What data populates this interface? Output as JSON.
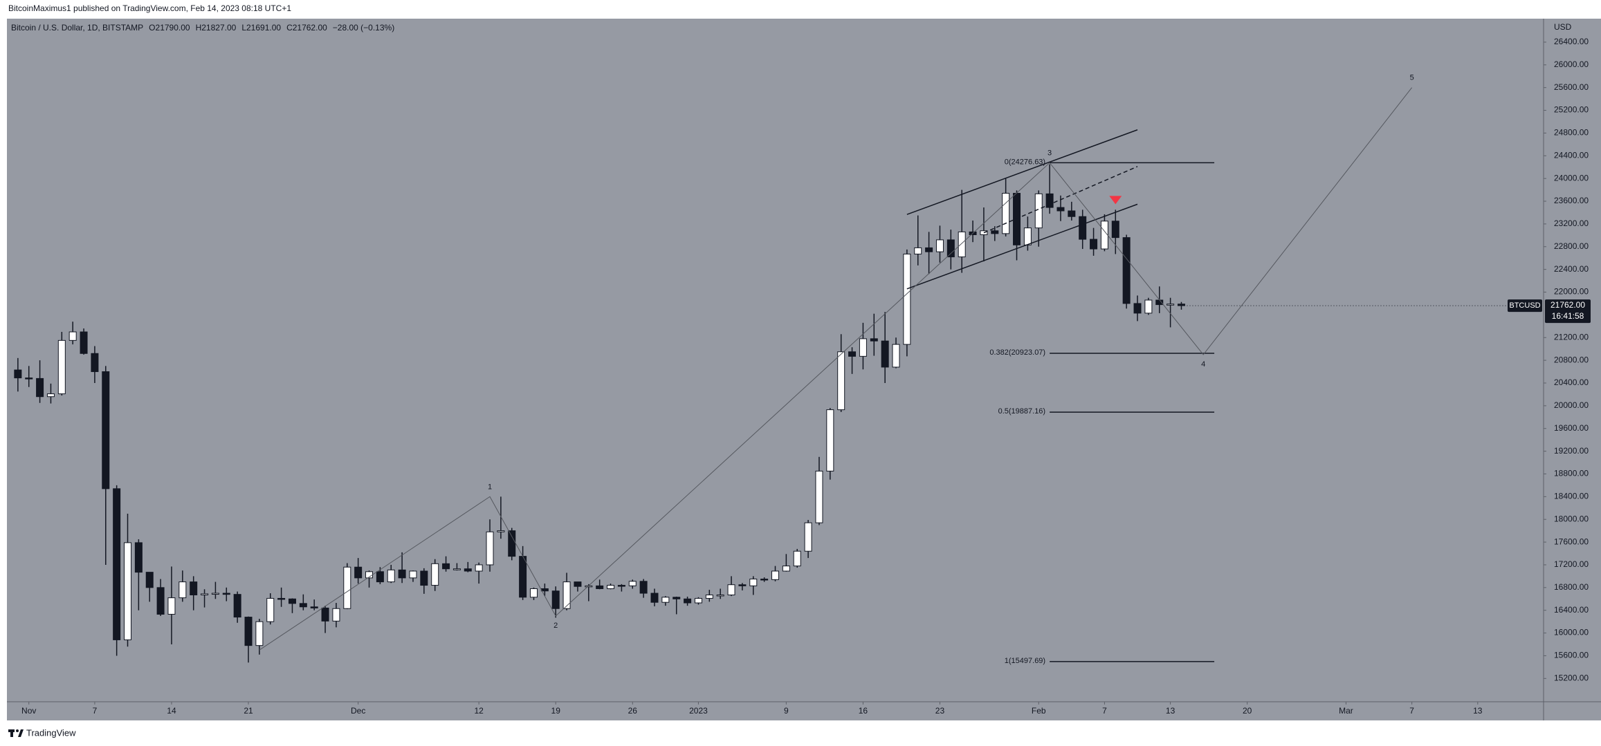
{
  "header": {
    "publisher": "BitcoinMaximus1 published on TradingView.com, Feb 14, 2023 08:18 UTC+1"
  },
  "legend": {
    "symbol": "Bitcoin / U.S. Dollar, 1D, BITSTAMP",
    "o": "O",
    "open": "21790.00",
    "h": "H",
    "high": "21827.00",
    "l": "L",
    "low": "21691.00",
    "c": "C",
    "close": "21762.00",
    "change": "−28.00 (−0.13%)"
  },
  "footer": {
    "brand": "TradingView"
  },
  "chart_data": {
    "type": "candlestick",
    "y_axis_label": "USD",
    "grid": false,
    "up_color": "#ffffff",
    "down_color": "#131722",
    "wick_color": "#131722",
    "background": "#969aa3",
    "x": [
      "2022-10-31",
      "2022-11-01",
      "2022-11-02",
      "2022-11-03",
      "2022-11-04",
      "2022-11-05",
      "2022-11-06",
      "2022-11-07",
      "2022-11-08",
      "2022-11-09",
      "2022-11-10",
      "2022-11-11",
      "2022-11-12",
      "2022-11-13",
      "2022-11-14",
      "2022-11-15",
      "2022-11-16",
      "2022-11-17",
      "2022-11-18",
      "2022-11-19",
      "2022-11-20",
      "2022-11-21",
      "2022-11-22",
      "2022-11-23",
      "2022-11-24",
      "2022-11-25",
      "2022-11-26",
      "2022-11-27",
      "2022-11-28",
      "2022-11-29",
      "2022-11-30",
      "2022-12-01",
      "2022-12-02",
      "2022-12-03",
      "2022-12-04",
      "2022-12-05",
      "2022-12-06",
      "2022-12-07",
      "2022-12-08",
      "2022-12-09",
      "2022-12-10",
      "2022-12-11",
      "2022-12-12",
      "2022-12-13",
      "2022-12-14",
      "2022-12-15",
      "2022-12-16",
      "2022-12-17",
      "2022-12-18",
      "2022-12-19",
      "2022-12-20",
      "2022-12-21",
      "2022-12-22",
      "2022-12-23",
      "2022-12-24",
      "2022-12-25",
      "2022-12-26",
      "2022-12-27",
      "2022-12-28",
      "2022-12-29",
      "2022-12-30",
      "2022-12-31",
      "2023-01-01",
      "2023-01-02",
      "2023-01-03",
      "2023-01-04",
      "2023-01-05",
      "2023-01-06",
      "2023-01-07",
      "2023-01-08",
      "2023-01-09",
      "2023-01-10",
      "2023-01-11",
      "2023-01-12",
      "2023-01-13",
      "2023-01-14",
      "2023-01-15",
      "2023-01-16",
      "2023-01-17",
      "2023-01-18",
      "2023-01-19",
      "2023-01-20",
      "2023-01-21",
      "2023-01-22",
      "2023-01-23",
      "2023-01-24",
      "2023-01-25",
      "2023-01-26",
      "2023-01-27",
      "2023-01-28",
      "2023-01-29",
      "2023-01-30",
      "2023-01-31",
      "2023-02-01",
      "2023-02-02",
      "2023-02-03",
      "2023-02-04",
      "2023-02-05",
      "2023-02-06",
      "2023-02-07",
      "2023-02-08",
      "2023-02-09",
      "2023-02-10",
      "2023-02-11",
      "2023-02-12",
      "2023-02-13",
      "2023-02-14"
    ],
    "open": [
      20630,
      20490,
      20480,
      20160,
      20210,
      21150,
      21300,
      20920,
      20600,
      18540,
      15880,
      17590,
      17070,
      16800,
      16330,
      16620,
      16900,
      16670,
      16690,
      16700,
      16680,
      16280,
      15780,
      16200,
      16610,
      16600,
      16520,
      16460,
      16440,
      16210,
      16430,
      17160,
      16970,
      17080,
      16900,
      17110,
      16970,
      17090,
      16840,
      17220,
      17130,
      17130,
      17090,
      17200,
      17780,
      17800,
      17350,
      16630,
      16780,
      16740,
      16430,
      16900,
      16820,
      16830,
      16780,
      16840,
      16830,
      16910,
      16700,
      16540,
      16630,
      16600,
      16530,
      16610,
      16670,
      16670,
      16850,
      16830,
      16950,
      16940,
      17090,
      17180,
      17440,
      17940,
      18850,
      19930,
      20950,
      20870,
      21180,
      21140,
      20680,
      21080,
      22670,
      22780,
      22710,
      22920,
      22620,
      23060,
      23010,
      23080,
      23030,
      23740,
      22830,
      23130,
      23730,
      23490,
      23430,
      23330,
      22930,
      22760,
      23250,
      22960,
      21800,
      21630,
      21860,
      21780,
      21790
    ],
    "high": [
      20840,
      20700,
      20800,
      20390,
      21300,
      21480,
      21360,
      21050,
      20700,
      18600,
      18100,
      17650,
      17070,
      16950,
      17170,
      17100,
      17000,
      16770,
      16900,
      16800,
      16730,
      16290,
      16250,
      16700,
      16800,
      16610,
      16680,
      16590,
      16480,
      16530,
      17230,
      17320,
      17100,
      17160,
      17200,
      17420,
      17100,
      17140,
      17300,
      17350,
      17230,
      17250,
      17240,
      18000,
      18400,
      17850,
      17530,
      16800,
      16870,
      16820,
      17060,
      16900,
      16860,
      16940,
      16870,
      16860,
      16940,
      16950,
      16780,
      16650,
      16640,
      16640,
      16630,
      16760,
      16780,
      17000,
      16880,
      17000,
      16980,
      17180,
      17390,
      17480,
      17990,
      19100,
      19960,
      21260,
      21030,
      21460,
      21620,
      21650,
      21200,
      22750,
      23350,
      23060,
      23170,
      23100,
      23800,
      23260,
      23490,
      23160,
      24000,
      23790,
      23330,
      23790,
      24250,
      23700,
      23590,
      23450,
      23130,
      23370,
      23450,
      23010,
      21940,
      21900,
      22100,
      21900,
      21827
    ],
    "low": [
      20250,
      20330,
      20050,
      20040,
      20180,
      21080,
      20900,
      20400,
      17200,
      15600,
      15760,
      16400,
      16550,
      16300,
      15800,
      16550,
      16400,
      16450,
      16600,
      16560,
      16180,
      15480,
      15620,
      16150,
      16460,
      16350,
      16400,
      16400,
      16000,
      16100,
      16420,
      16870,
      16800,
      16860,
      16880,
      16880,
      16900,
      16690,
      16740,
      17080,
      17100,
      17070,
      16870,
      17080,
      17660,
      17280,
      16580,
      16580,
      16650,
      16270,
      16400,
      16730,
      16560,
      16770,
      16770,
      16730,
      16780,
      16620,
      16470,
      16480,
      16330,
      16480,
      16500,
      16550,
      16600,
      16650,
      16750,
      16670,
      16900,
      16910,
      17080,
      17150,
      17320,
      17900,
      18700,
      19890,
      20560,
      20640,
      20880,
      20400,
      20660,
      20870,
      22470,
      22320,
      22520,
      22400,
      22340,
      22880,
      22540,
      22900,
      22980,
      22560,
      22730,
      22800,
      23380,
      23250,
      23260,
      22760,
      22640,
      22720,
      22670,
      21710,
      21490,
      21600,
      21630,
      21380,
      21691
    ],
    "close": [
      20490,
      20480,
      20160,
      20210,
      21150,
      21300,
      20920,
      20600,
      18540,
      15880,
      17590,
      17070,
      16800,
      16330,
      16620,
      16900,
      16670,
      16690,
      16700,
      16680,
      16280,
      15780,
      16200,
      16610,
      16600,
      16520,
      16460,
      16440,
      16210,
      16430,
      17160,
      16970,
      17080,
      16900,
      17110,
      16970,
      17090,
      16840,
      17220,
      17130,
      17130,
      17090,
      17200,
      17780,
      17800,
      17350,
      16630,
      16780,
      16740,
      16430,
      16900,
      16820,
      16830,
      16780,
      16840,
      16830,
      16910,
      16700,
      16540,
      16630,
      16600,
      16530,
      16610,
      16670,
      16670,
      16850,
      16830,
      16950,
      16940,
      17090,
      17180,
      17440,
      17940,
      18850,
      19930,
      20950,
      20870,
      21180,
      21140,
      20680,
      21080,
      22670,
      22780,
      22710,
      22920,
      22620,
      23060,
      23010,
      23080,
      23030,
      23740,
      22830,
      23130,
      23730,
      23490,
      23430,
      23330,
      22930,
      22760,
      23250,
      22960,
      21800,
      21630,
      21860,
      21780,
      21790,
      21762
    ],
    "xlim": [
      "2022-10-30",
      "2023-03-19"
    ],
    "xticks": [
      {
        "value": "2022-11-01",
        "label": "Nov"
      },
      {
        "value": "2022-11-07",
        "label": "7"
      },
      {
        "value": "2022-11-14",
        "label": "14"
      },
      {
        "value": "2022-11-21",
        "label": "21"
      },
      {
        "value": "2022-12-01",
        "label": "Dec"
      },
      {
        "value": "2022-12-12",
        "label": "12"
      },
      {
        "value": "2022-12-19",
        "label": "19"
      },
      {
        "value": "2022-12-26",
        "label": "26"
      },
      {
        "value": "2023-01-01",
        "label": "2023"
      },
      {
        "value": "2023-01-09",
        "label": "9"
      },
      {
        "value": "2023-01-16",
        "label": "16"
      },
      {
        "value": "2023-01-23",
        "label": "23"
      },
      {
        "value": "2023-02-01",
        "label": "Feb"
      },
      {
        "value": "2023-02-07",
        "label": "7"
      },
      {
        "value": "2023-02-13",
        "label": "13"
      },
      {
        "value": "2023-02-20",
        "label": "20"
      },
      {
        "value": "2023-03-01",
        "label": "Mar"
      },
      {
        "value": "2023-03-07",
        "label": "7"
      },
      {
        "value": "2023-03-13",
        "label": "13"
      }
    ],
    "ylim": [
      14790,
      26813
    ],
    "yticks": [
      {
        "value": 15200,
        "label": "15200.00"
      },
      {
        "value": 15600,
        "label": "15600.00"
      },
      {
        "value": 16000,
        "label": "16000.00"
      },
      {
        "value": 16400,
        "label": "16400.00"
      },
      {
        "value": 16800,
        "label": "16800.00"
      },
      {
        "value": 17200,
        "label": "17200.00"
      },
      {
        "value": 17600,
        "label": "17600.00"
      },
      {
        "value": 18000,
        "label": "18000.00"
      },
      {
        "value": 18400,
        "label": "18400.00"
      },
      {
        "value": 18800,
        "label": "18800.00"
      },
      {
        "value": 19200,
        "label": "19200.00"
      },
      {
        "value": 19600,
        "label": "19600.00"
      },
      {
        "value": 20000,
        "label": "20000.00"
      },
      {
        "value": 20400,
        "label": "20400.00"
      },
      {
        "value": 20800,
        "label": "20800.00"
      },
      {
        "value": 21200,
        "label": "21200.00"
      },
      {
        "value": 22000,
        "label": "22000.00"
      },
      {
        "value": 22400,
        "label": "22400.00"
      },
      {
        "value": 22800,
        "label": "22800.00"
      },
      {
        "value": 23200,
        "label": "23200.00"
      },
      {
        "value": 23600,
        "label": "23600.00"
      },
      {
        "value": 24000,
        "label": "24000.00"
      },
      {
        "value": 24400,
        "label": "24400.00"
      },
      {
        "value": 24800,
        "label": "24800.00"
      },
      {
        "value": 25200,
        "label": "25200.00"
      },
      {
        "value": 25600,
        "label": "25600.00"
      },
      {
        "value": 26000,
        "label": "26000.00"
      },
      {
        "value": 26400,
        "label": "26400.00"
      }
    ],
    "last_price": {
      "value": 21762,
      "symbol": "BTCUSD",
      "label": "21762.00",
      "countdown": "16:41:58"
    },
    "drawings": {
      "trendlines": [
        {
          "from": [
            "2023-01-20",
            23367
          ],
          "to": [
            "2023-02-10",
            24857
          ],
          "dashed": false
        },
        {
          "from": [
            "2023-01-20",
            22057
          ],
          "to": [
            "2023-02-10",
            23547
          ],
          "dashed": false
        },
        {
          "from": [
            "2023-01-27",
            23044
          ],
          "to": [
            "2023-02-10",
            24211
          ],
          "dashed": true
        }
      ],
      "fib_levels": [
        {
          "value": 24276.63,
          "label": "0(24276.63)",
          "from": "2023-02-02",
          "to": "2023-02-17"
        },
        {
          "value": 20923.07,
          "label": "0.382(20923.07)",
          "from": "2023-02-02",
          "to": "2023-02-17"
        },
        {
          "value": 19887.16,
          "label": "0.5(19887.16)",
          "from": "2023-02-02",
          "to": "2023-02-17"
        },
        {
          "value": 15497.69,
          "label": "1(15497.69)",
          "from": "2023-02-02",
          "to": "2023-02-17"
        }
      ],
      "wave": {
        "points": [
          {
            "x": "2022-11-22",
            "y": 15700
          },
          {
            "x": "2022-12-13",
            "y": 18400
          },
          {
            "x": "2022-12-19",
            "y": 16300
          },
          {
            "x": "2023-02-02",
            "y": 24276.63
          },
          {
            "x": "2023-02-16",
            "y": 20900
          },
          {
            "x": "2023-03-07",
            "y": 25600
          }
        ],
        "labels": [
          "1",
          "2",
          "3",
          "4",
          "5"
        ],
        "color": "#55585f"
      },
      "marker": {
        "x": "2023-02-08",
        "y": 23620,
        "color": "#f23645"
      }
    }
  }
}
